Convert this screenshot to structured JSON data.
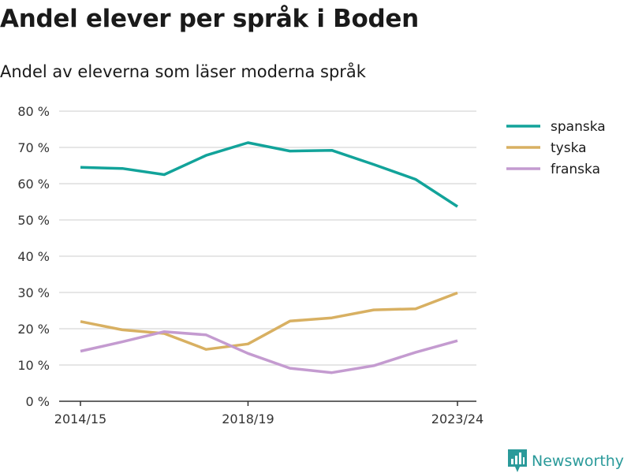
{
  "header": {
    "title": "Andel elever per språk i Boden",
    "subtitle": "Andel av eleverna som läser moderna språk"
  },
  "brand": {
    "name": "Newsworthy",
    "icon": "bar-chart-logo-icon",
    "color": "#2a9a9a"
  },
  "chart_data": {
    "type": "line",
    "title": "Andel elever per språk i Boden",
    "subtitle": "Andel av eleverna som läser moderna språk",
    "x": [
      0,
      1,
      2,
      3,
      4,
      5,
      6,
      7,
      8,
      9
    ],
    "x_tick_labels": [
      {
        "x": 0,
        "label": "2014/15"
      },
      {
        "x": 4,
        "label": "2018/19"
      },
      {
        "x": 9,
        "label": "2023/24"
      }
    ],
    "ylim": [
      0,
      80
    ],
    "y_ticks": [
      0,
      10,
      20,
      30,
      40,
      50,
      60,
      70,
      80
    ],
    "y_tick_labels": [
      "0 %",
      "10 %",
      "20 %",
      "30 %",
      "40 %",
      "50 %",
      "60 %",
      "70 %",
      "80 %"
    ],
    "grid": true,
    "legend": "right",
    "series": [
      {
        "name": "spanska",
        "color": "#12a39a",
        "values": [
          64.5,
          64.2,
          62.5,
          67.8,
          71.3,
          69.0,
          69.2,
          65.3,
          61.2,
          53.7
        ]
      },
      {
        "name": "tyska",
        "color": "#d8b062",
        "values": [
          22.0,
          19.7,
          18.7,
          14.3,
          15.8,
          22.1,
          23.0,
          25.2,
          25.5,
          29.9
        ]
      },
      {
        "name": "franska",
        "color": "#c49bd0",
        "values": [
          13.8,
          16.4,
          19.2,
          18.3,
          13.2,
          9.1,
          7.9,
          9.8,
          13.5,
          16.7
        ]
      }
    ]
  }
}
